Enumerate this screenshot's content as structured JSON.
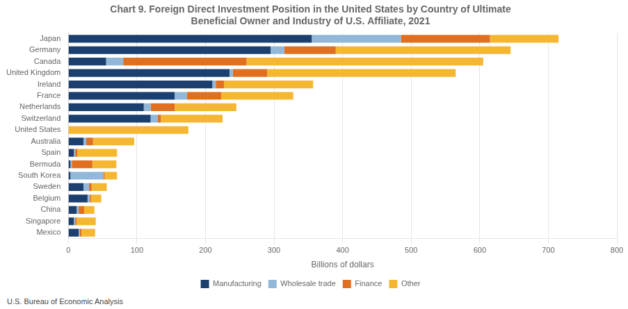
{
  "chart_data": {
    "type": "bar",
    "orientation": "horizontal",
    "stacked": true,
    "title": "Chart 9. Foreign Direct Investment Position in the United States by Country of Ultimate\nBeneficial Owner and Industry of U.S. Affiliate, 2021",
    "xlabel": "Billions of dollars",
    "footnote": "U.S. Bureau of Economic Analysis",
    "categories": [
      "Japan",
      "Germany",
      "Canada",
      "United Kingdom",
      "Ireland",
      "France",
      "Netherlands",
      "Switzerland",
      "United States",
      "Australia",
      "Spain",
      "Bermuda",
      "South Korea",
      "Sweden",
      "Belgium",
      "China",
      "Singapore",
      "Mexico"
    ],
    "series": [
      {
        "name": "Manufacturing",
        "color": "#1b3f6e",
        "values": [
          355,
          295,
          55,
          235,
          210,
          155,
          110,
          120,
          0,
          22,
          8,
          3,
          3,
          22,
          28,
          12,
          8,
          15
        ]
      },
      {
        "name": "Wholesale trade",
        "color": "#92b8d9",
        "values": [
          130,
          20,
          25,
          5,
          5,
          18,
          10,
          10,
          0,
          4,
          2,
          2,
          48,
          8,
          3,
          3,
          2,
          2
        ]
      },
      {
        "name": "Finance",
        "color": "#e07020",
        "values": [
          130,
          75,
          180,
          50,
          12,
          50,
          35,
          5,
          0,
          10,
          3,
          30,
          2,
          4,
          2,
          8,
          2,
          2
        ]
      },
      {
        "name": "Other",
        "color": "#f5b731",
        "values": [
          100,
          255,
          345,
          275,
          130,
          105,
          90,
          90,
          175,
          60,
          58,
          35,
          18,
          22,
          15,
          15,
          28,
          20
        ]
      }
    ],
    "xlim": [
      0,
      800
    ],
    "xticks": [
      0,
      100,
      200,
      300,
      400,
      500,
      600,
      700,
      800
    ],
    "grid": true,
    "legend": "bottom"
  }
}
